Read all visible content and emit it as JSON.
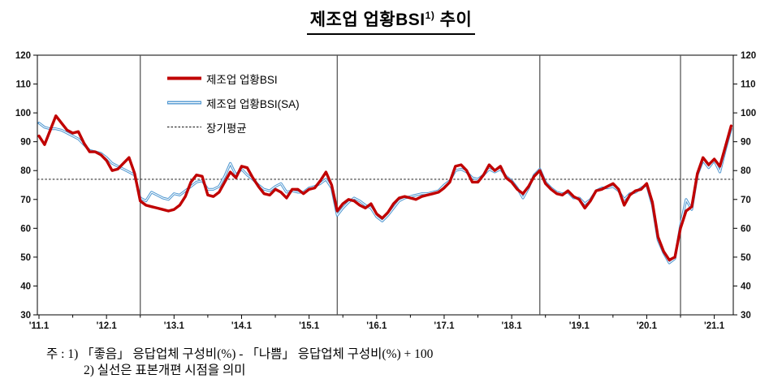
{
  "title": {
    "main": "제조업  업황BSI",
    "sup": "1)",
    "tail": " 추이"
  },
  "legend": {
    "items": [
      {
        "label": "제조업 업황BSI",
        "style": "solid-thick",
        "color": "#C00000"
      },
      {
        "label": "제조업 업황BSI(SA)",
        "style": "double-line",
        "color": "#4D96D0"
      },
      {
        "label": "장기평균",
        "style": "dotted",
        "color": "#333333"
      }
    ]
  },
  "footnote": {
    "line1": "주 : 1) 「좋음」 응답업체 구성비(%) - 「나쁨」 응답업체 구성비(%) + 100",
    "line2": "2) 실선은 표본개편 시점을 의미"
  },
  "chart_data": {
    "type": "line",
    "frequency": "monthly",
    "start": "2011.01",
    "end": "2021.04",
    "ylim": [
      30,
      120
    ],
    "ytick_step": 10,
    "grid": false,
    "legend_position": "inside-top-left",
    "long_term_average": 77,
    "sample_revision_lines": [
      "2012.07",
      "2015.06",
      "2018.06",
      "2020.07"
    ],
    "x_tick_labels": [
      "'11.1",
      "'12.1",
      "'13.1",
      "'14.1",
      "'15.1",
      "'16.1",
      "'17.1",
      "'18.1",
      "'19.1",
      "'20.1",
      "'21.1"
    ],
    "series": [
      {
        "name": "제조업 업황BSI",
        "color": "#C00000",
        "values": [
          92,
          89,
          94,
          99,
          96.5,
          94,
          93,
          93.5,
          89.5,
          86.5,
          86.5,
          85.5,
          83.5,
          80,
          80.5,
          82.5,
          84.5,
          79,
          69.5,
          68,
          67.5,
          67,
          66.5,
          66,
          66.5,
          68,
          71,
          76,
          78.5,
          78,
          71.5,
          71,
          72.5,
          76,
          79.5,
          77.5,
          81.5,
          81,
          77.5,
          74.5,
          72,
          71.5,
          73.5,
          72.5,
          70.5,
          73.5,
          73.5,
          72,
          73.5,
          74,
          76.5,
          79.5,
          75,
          66,
          68.5,
          70,
          69.5,
          68,
          67,
          68.5,
          65,
          63.5,
          65.5,
          68.5,
          70.5,
          71,
          70.5,
          70,
          71,
          71.5,
          72,
          72.5,
          74,
          76,
          81.5,
          82,
          80,
          76,
          76,
          78.5,
          82,
          80,
          81.5,
          77.5,
          76,
          73.5,
          72,
          74.5,
          78,
          80,
          75.5,
          73.5,
          72,
          71.5,
          73,
          71,
          70,
          67,
          69.5,
          73,
          73.5,
          74.5,
          75.5,
          73.5,
          68,
          71.5,
          73,
          73.5,
          75.5,
          69,
          57,
          52,
          49,
          50,
          60,
          66,
          67.5,
          79,
          84.5,
          82,
          84,
          81.5,
          88.5,
          95.5
        ]
      },
      {
        "name": "제조업 업황BSI(SA)",
        "color": "#4D96D0",
        "values": [
          96.5,
          95,
          94.5,
          94.5,
          94,
          93,
          92,
          91,
          89,
          87,
          86.5,
          86,
          84.5,
          82.5,
          81.5,
          80.5,
          79.5,
          78.5,
          70.5,
          69.5,
          72.5,
          71.5,
          70.5,
          70,
          72,
          71.5,
          73,
          74.5,
          76,
          76.5,
          73.5,
          73.5,
          74.5,
          78,
          82.5,
          78.5,
          80.5,
          78.5,
          77,
          75,
          73.5,
          73,
          74.5,
          75.5,
          72.5,
          73,
          72.5,
          72.5,
          74,
          74.5,
          75.5,
          77,
          74,
          64.5,
          67,
          69,
          70.5,
          69.5,
          68,
          67,
          64,
          62.5,
          64.5,
          67,
          69.5,
          70.5,
          71,
          71.5,
          72,
          72,
          72.5,
          73,
          75,
          76.5,
          80,
          80.5,
          79.5,
          77.5,
          77,
          78.5,
          80.5,
          79.5,
          80.5,
          78,
          76.5,
          74,
          70.5,
          74,
          78.5,
          80.5,
          76,
          74,
          72.5,
          72,
          72.5,
          70.5,
          70.5,
          68.5,
          70,
          73,
          74,
          74,
          74.5,
          73,
          70,
          72,
          72.5,
          74,
          75,
          68,
          56,
          51.5,
          48,
          49.5,
          61,
          70,
          66.5,
          78.5,
          83.5,
          81,
          83.5,
          79.5,
          87.5,
          94.5
        ]
      }
    ]
  }
}
